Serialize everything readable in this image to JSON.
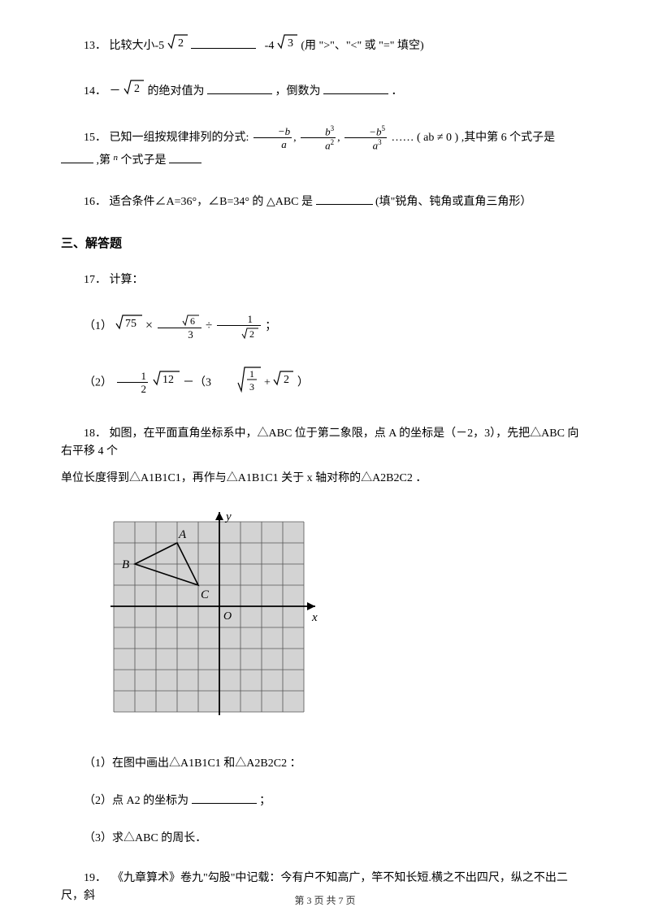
{
  "q13": {
    "num": "13．",
    "pre": "比较大小-5",
    "sqrt1": "2",
    "mid": "-4",
    "sqrt2": "3",
    "post": "(用 \">\"、\"<\" 或 \"=\" 填空)"
  },
  "q14": {
    "num": "14．",
    "pre": "－",
    "sqrt": "2",
    "mid1": " 的绝对值为",
    "mid2": "，倒数为",
    "end": "．"
  },
  "q15": {
    "num": "15．",
    "pre": "已知一组按规律排列的分式: ",
    "t1_num_sign": "−",
    "t1_num": "b",
    "t1_den": "a",
    "t2_num": "b",
    "t2_num_exp": "3",
    "t2_den": "a",
    "t2_den_exp": "2",
    "t3_num_sign": "−",
    "t3_num": "b",
    "t3_num_exp": "5",
    "t3_den": "a",
    "t3_den_exp": "3",
    "dots": "……",
    "cond": "( ab ≠ 0 )",
    "mid1": ",其中第 6 个式子是",
    "mid2": ",第",
    "nvar": "n",
    "mid3": "个式子是"
  },
  "q16": {
    "num": "16．",
    "pre": "适合条件∠A=36°，∠B=34° 的",
    "tri": "△ABC",
    "mid": "是",
    "post": "(填\"锐角、钝角或直角三角形）"
  },
  "section3": "三、解答题",
  "q17": {
    "num": "17．",
    "label": "计算：",
    "p1_label": "（1）",
    "p1_a": "75",
    "p1_b_top": "6",
    "p1_b_bot": "3",
    "p1_c_top": "1",
    "p1_c_bot": "2",
    "p2_label": "（2）",
    "p2_a_top": "1",
    "p2_a_bot": "2",
    "p2_a_sqrt": "12",
    "p2_minus": "－（3",
    "p2_b_top": "1",
    "p2_b_bot": "3",
    "p2_plus": "+",
    "p2_c": "2",
    "p2_end": "）"
  },
  "q18": {
    "num": "18．",
    "text1": "如图，在平面直角坐标系中，△ABC 位于第二象限，点 A 的坐标是（－2，3），先把△ABC 向右平移 4 个",
    "text2": "单位长度得到△A1B1C1，再作与△A1B1C1 关于 x 轴对称的△A2B2C2 ．",
    "sub1": "（1）在图中画出△A1B1C1 和△A2B2C2  ：",
    "sub2a": "（2）点 A2 的坐标为",
    "sub2b": "；",
    "sub3": "（3）求△ABC 的周长．",
    "grid": {
      "cols": 9,
      "rows": 9,
      "cell": 26,
      "originCol": 5,
      "originRow": 4,
      "A_label": "A",
      "B_label": "B",
      "C_label": "C",
      "O_label": "O",
      "x_label": "x",
      "y_label": "y",
      "A": [
        -2,
        3
      ],
      "B": [
        -4,
        2
      ],
      "C": [
        -1,
        1
      ],
      "bg": "#d3d3d3",
      "gridColor": "#555555",
      "axisColor": "#000000",
      "triColor": "#000000"
    }
  },
  "q19": {
    "num": "19．",
    "text": "《九章算术》卷九\"勾股\"中记载：今有户不知高广，竿不知长短.横之不出四尺，纵之不出二尺，斜"
  },
  "footer": {
    "pre": "第 ",
    "cur": "3",
    "mid": " 页 共 ",
    "total": "7",
    "post": " 页"
  }
}
